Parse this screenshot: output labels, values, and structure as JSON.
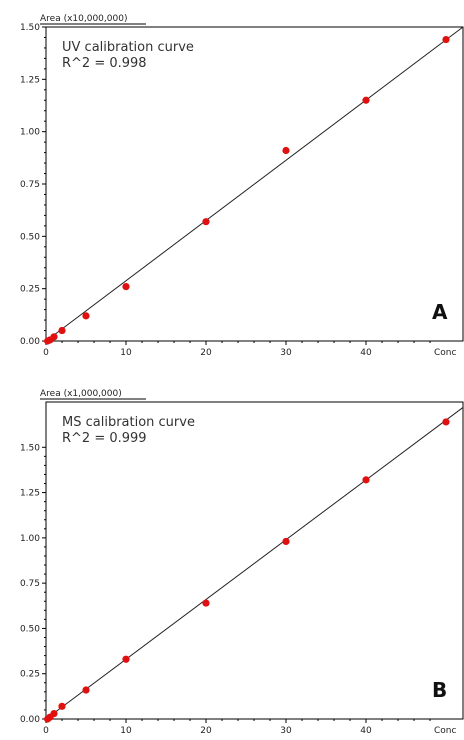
{
  "chart_data": [
    {
      "type": "scatter",
      "panel": "A",
      "annotation_line1": "UV calibration curve",
      "annotation_line2": "R^2 = 0.998",
      "y_unit_label": "Area (x10,000,000)",
      "x_unit_label": "Conc",
      "xlim": [
        0,
        50
      ],
      "ylim": [
        0,
        1.5
      ],
      "x_ticks": [
        0,
        10,
        20,
        30,
        40
      ],
      "y_ticks": [
        "0.00",
        "0.25",
        "0.50",
        "0.75",
        "1.00",
        "1.25",
        "1.50"
      ],
      "grid": false,
      "points": [
        {
          "x": 0.2,
          "y": 0.0
        },
        {
          "x": 0.5,
          "y": 0.005
        },
        {
          "x": 1.0,
          "y": 0.02
        },
        {
          "x": 2.0,
          "y": 0.05
        },
        {
          "x": 5.0,
          "y": 0.12
        },
        {
          "x": 10.0,
          "y": 0.26
        },
        {
          "x": 20.0,
          "y": 0.57
        },
        {
          "x": 30.0,
          "y": 0.91
        },
        {
          "x": 40.0,
          "y": 1.15
        },
        {
          "x": 50.0,
          "y": 1.44
        }
      ],
      "fit_line": {
        "x": [
          0,
          52.5
        ],
        "y": [
          0.0,
          1.5
        ]
      }
    },
    {
      "type": "scatter",
      "panel": "B",
      "annotation_line1": "MS calibration curve",
      "annotation_line2": "R^2 = 0.999",
      "y_unit_label": "Area (x1,000,000)",
      "x_unit_label": "Conc",
      "xlim": [
        0,
        50
      ],
      "ylim": [
        0,
        1.75
      ],
      "x_ticks": [
        0,
        10,
        20,
        30,
        40
      ],
      "y_ticks": [
        "0.00",
        "0.25",
        "0.50",
        "0.75",
        "1.00",
        "1.25",
        "1.50"
      ],
      "grid": false,
      "points": [
        {
          "x": 0.2,
          "y": 0.0
        },
        {
          "x": 0.5,
          "y": 0.01
        },
        {
          "x": 1.0,
          "y": 0.03
        },
        {
          "x": 2.0,
          "y": 0.07
        },
        {
          "x": 5.0,
          "y": 0.16
        },
        {
          "x": 10.0,
          "y": 0.33
        },
        {
          "x": 20.0,
          "y": 0.64
        },
        {
          "x": 30.0,
          "y": 0.98
        },
        {
          "x": 40.0,
          "y": 1.32
        },
        {
          "x": 50.0,
          "y": 1.64
        }
      ],
      "fit_line": {
        "x": [
          0,
          52.5
        ],
        "y": [
          0.0,
          1.72
        ]
      }
    }
  ],
  "colors": {
    "point": "#e01010",
    "line": "#222222",
    "axis": "#000000"
  }
}
